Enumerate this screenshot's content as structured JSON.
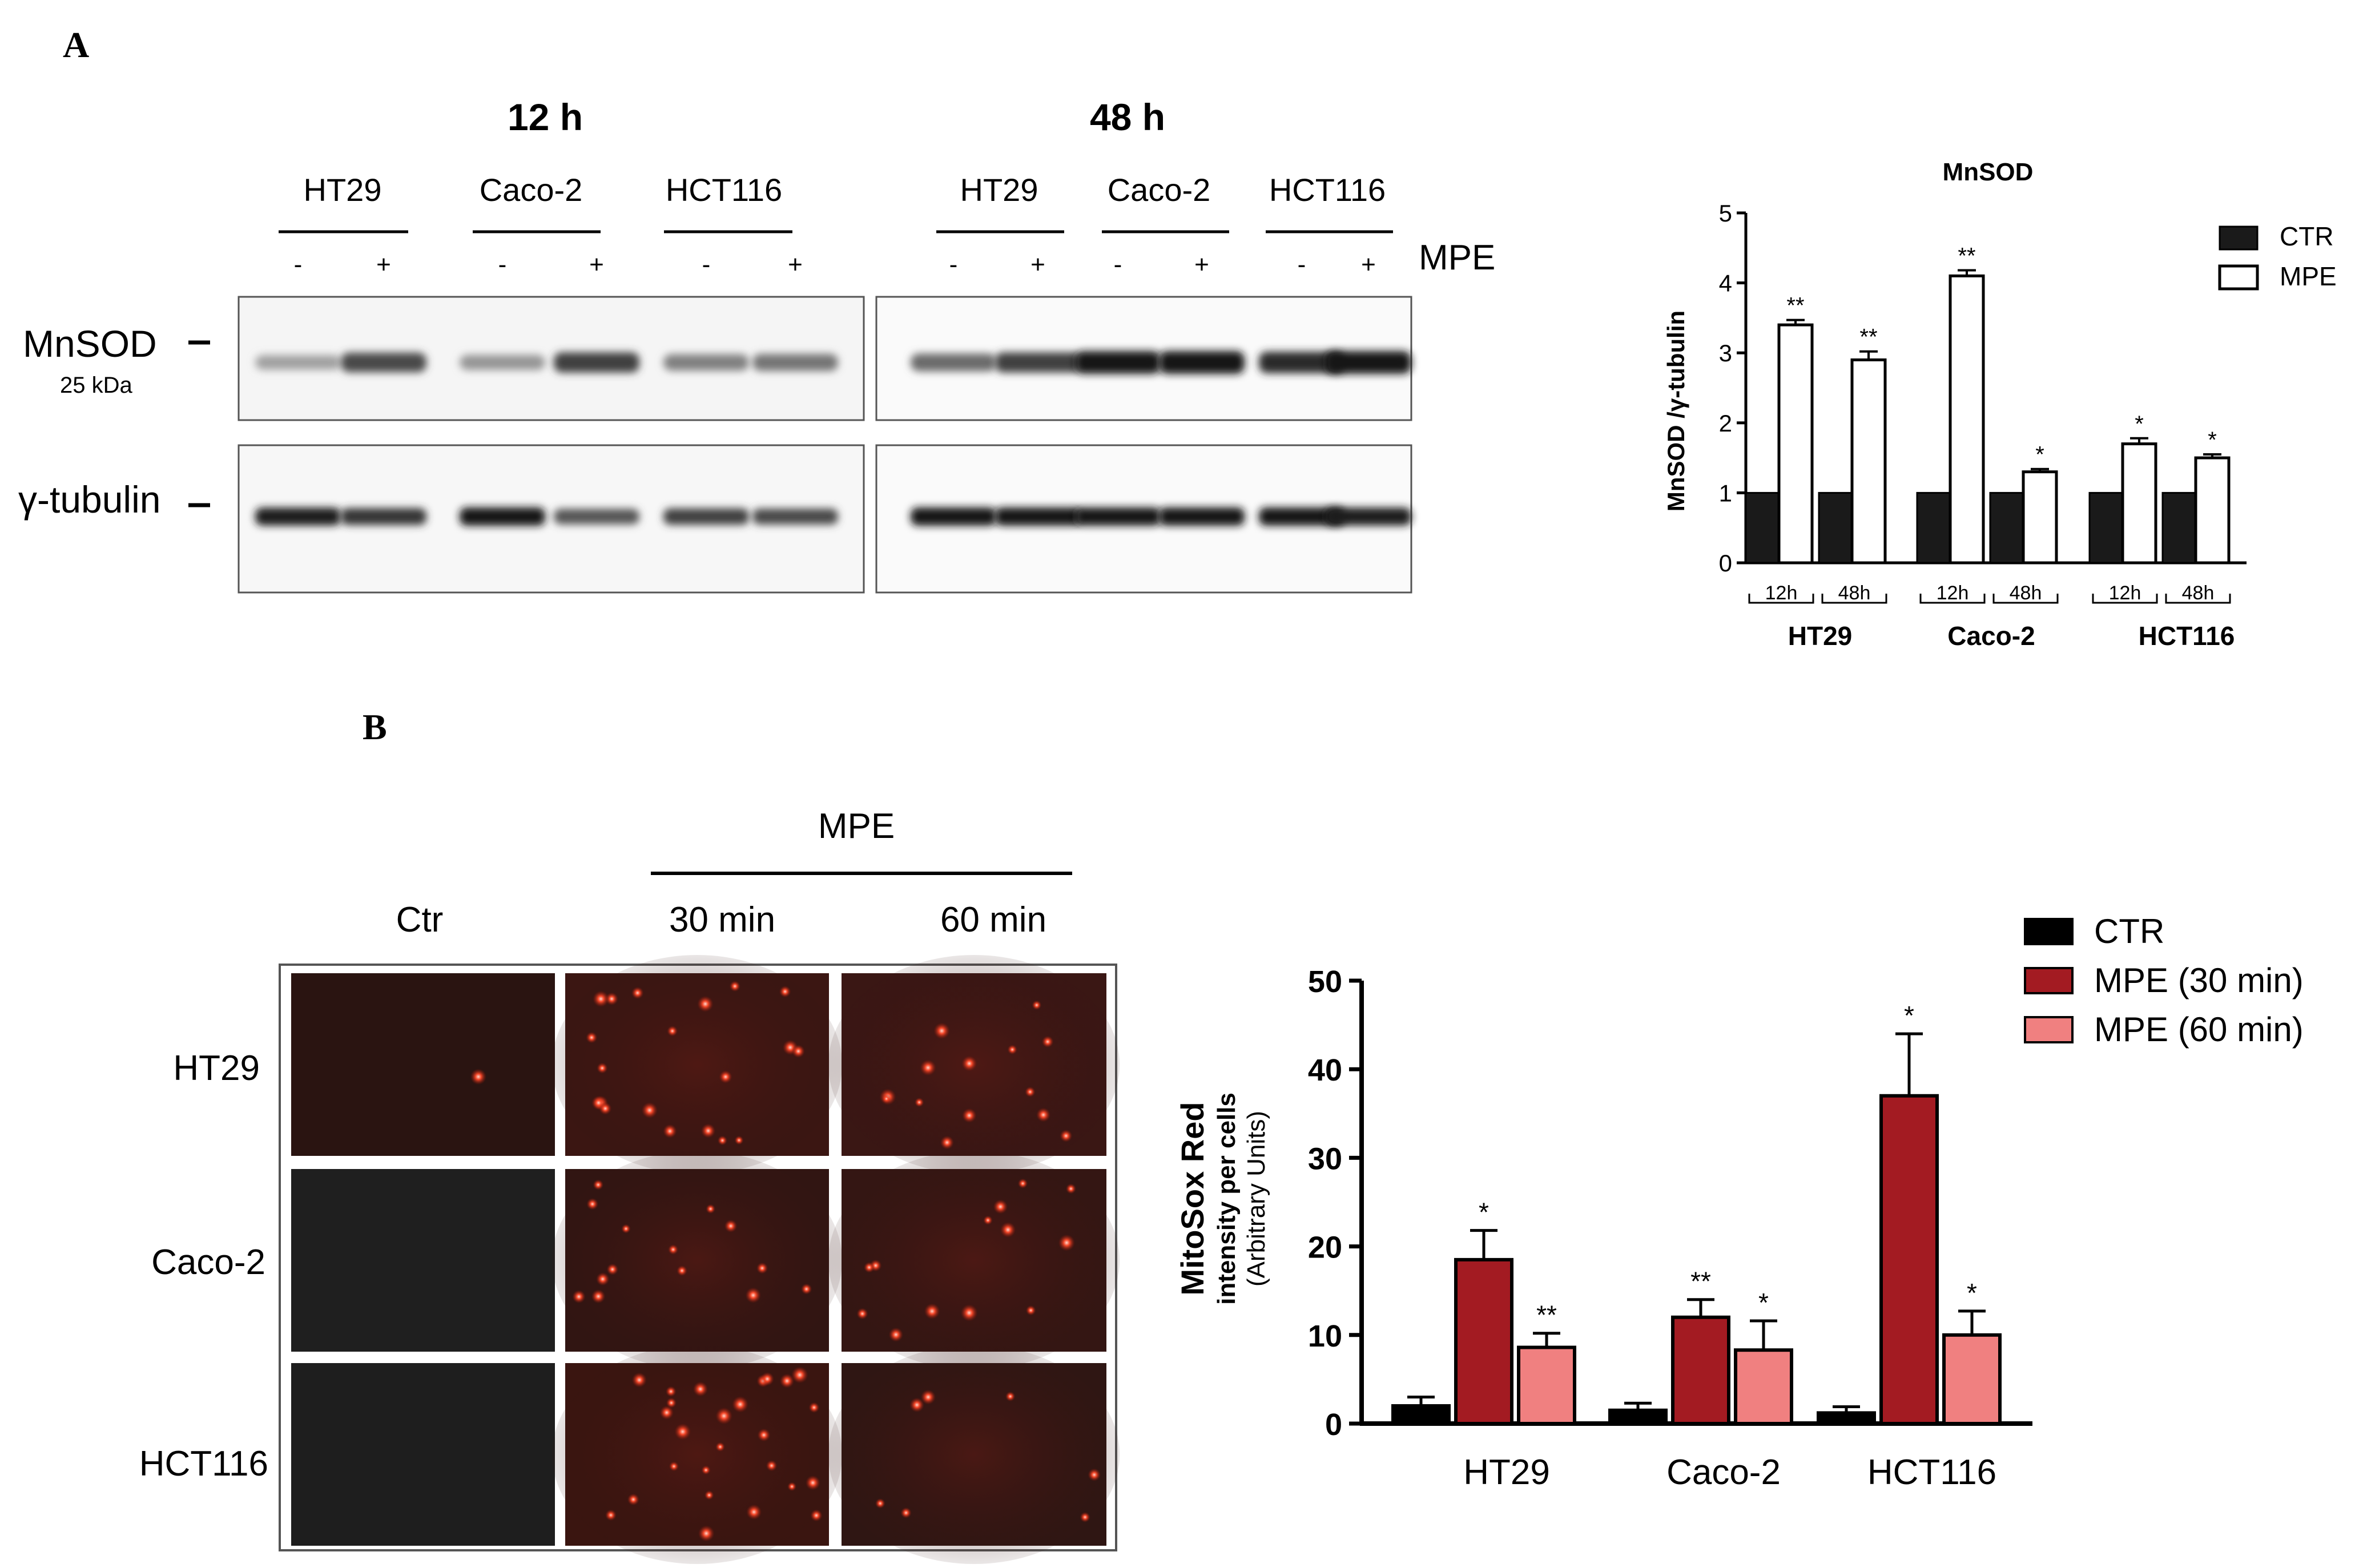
{
  "panel_a": {
    "letter": "A",
    "blot": {
      "time_labels": [
        "12 h",
        "48 h"
      ],
      "cell_lines": [
        "HT29",
        "Caco-2",
        "HCT116",
        "HT29",
        "Caco-2",
        "HCT116"
      ],
      "treatment_signs": [
        "-",
        "+",
        "-",
        "+",
        "-",
        "+",
        "-",
        "+",
        "-",
        "+",
        "-",
        "+"
      ],
      "treatment_label": "MPE",
      "protein_label": "MnSOD",
      "protein_size": "25 kDa",
      "loading_label": "γ-tubulin",
      "mnsod_band_intensity": [
        0.35,
        0.75,
        0.4,
        0.8,
        0.5,
        0.55,
        0.6,
        0.8,
        1.0,
        1.0,
        0.9,
        1.0
      ],
      "tubulin_band_intensity": [
        0.95,
        0.85,
        1.0,
        0.7,
        0.8,
        0.75,
        1.0,
        1.0,
        1.0,
        1.0,
        1.0,
        0.95
      ]
    }
  },
  "panel_b": {
    "letter": "B",
    "micro": {
      "treatment_label": "MPE",
      "columns": [
        "Ctr",
        "30 min",
        "60 min"
      ],
      "rows": [
        "HT29",
        "Caco-2",
        "HCT116"
      ]
    }
  },
  "chart_data": [
    {
      "type": "bar",
      "title": "MnSOD",
      "ylabel": "MnSOD /γ-tubulin",
      "ylim": [
        0,
        5
      ],
      "yticks": [
        "0",
        "1",
        "2",
        "3",
        "4",
        "5"
      ],
      "groups": [
        "HT29",
        "Caco-2",
        "HCT116"
      ],
      "timepoints": [
        "12h",
        "48h",
        "12h",
        "48h",
        "12h",
        "48h"
      ],
      "series": [
        {
          "name": "CTR",
          "values": [
            1,
            1,
            1,
            1,
            1,
            1
          ],
          "errors": [
            0,
            0,
            0,
            0,
            0,
            0
          ],
          "color": "#1a1a1a"
        },
        {
          "name": "MPE",
          "values": [
            3.4,
            2.9,
            4.1,
            1.3,
            1.7,
            1.5
          ],
          "errors": [
            0.07,
            0.12,
            0.08,
            0.04,
            0.08,
            0.05
          ],
          "color": "#ffffff"
        }
      ],
      "significance": [
        "**",
        "**",
        "**",
        "*",
        "*",
        "*"
      ],
      "legend_position": "top-right"
    },
    {
      "type": "bar",
      "ylabel": "MitoSox Red",
      "ylabel_line2": "intensity per cells",
      "ylabel_line3": "(Arbitrary Units)",
      "ylim": [
        0,
        50
      ],
      "yticks": [
        "0",
        "10",
        "20",
        "30",
        "40",
        "50"
      ],
      "categories": [
        "HT29",
        "Caco-2",
        "HCT116"
      ],
      "series": [
        {
          "name": "CTR",
          "values": [
            2,
            1.5,
            1.2
          ],
          "errors": [
            1,
            0.8,
            0.7
          ],
          "color": "#000000"
        },
        {
          "name": "MPE (30 min)",
          "values": [
            18.5,
            12,
            37
          ],
          "errors": [
            3.3,
            2,
            7
          ],
          "color": "#a31b22"
        },
        {
          "name": "MPE (60 min)",
          "values": [
            8.6,
            8.3,
            10
          ],
          "errors": [
            1.6,
            3.3,
            2.7
          ],
          "color": "#f08080"
        }
      ],
      "significance": [
        [
          "",
          "*",
          "**"
        ],
        [
          "",
          "**",
          "*"
        ],
        [
          "",
          "*",
          "*"
        ]
      ],
      "legend_position": "top-right"
    }
  ]
}
